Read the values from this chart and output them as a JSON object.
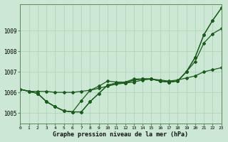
{
  "background_color": "#cce8d4",
  "grid_color": "#aad0b8",
  "line_color": "#1a5c1a",
  "xlabel": "Graphe pression niveau de la mer (hPa)",
  "xlim": [
    0,
    23
  ],
  "ylim": [
    1004.5,
    1010.3
  ],
  "yticks": [
    1005,
    1006,
    1007,
    1008,
    1009
  ],
  "xticks": [
    0,
    1,
    2,
    3,
    4,
    5,
    6,
    7,
    8,
    9,
    10,
    11,
    12,
    13,
    14,
    15,
    16,
    17,
    18,
    19,
    20,
    21,
    22,
    23
  ],
  "series": [
    [
      1006.15,
      1006.05,
      1006.05,
      1006.05,
      1006.0,
      1006.0,
      1006.0,
      1006.05,
      1006.1,
      1006.2,
      1006.3,
      1006.4,
      1006.45,
      1006.5,
      1006.6,
      1006.65,
      1006.6,
      1006.55,
      1006.6,
      1006.7,
      1006.8,
      1007.0,
      1007.1,
      1007.2
    ],
    [
      1006.15,
      1006.05,
      1005.95,
      1005.55,
      1005.3,
      1005.1,
      1005.05,
      1005.05,
      1005.55,
      1005.95,
      1006.35,
      1006.45,
      1006.45,
      1006.6,
      1006.65,
      1006.65,
      1006.55,
      1006.5,
      1006.55,
      1007.0,
      1007.5,
      1008.4,
      1008.85,
      1009.1
    ],
    [
      1006.15,
      1006.05,
      1005.95,
      1005.55,
      1005.3,
      1005.1,
      1005.05,
      1005.05,
      1005.55,
      1005.95,
      1006.35,
      1006.45,
      1006.45,
      1006.6,
      1006.65,
      1006.65,
      1006.55,
      1006.5,
      1006.55,
      1007.0,
      1007.7,
      1008.8,
      1009.5,
      1010.1
    ],
    [
      1006.15,
      1006.05,
      1005.95,
      1005.55,
      1005.3,
      1005.1,
      1005.05,
      1005.6,
      1006.1,
      1006.3,
      1006.55,
      1006.5,
      1006.5,
      1006.65,
      1006.65,
      1006.65,
      1006.55,
      1006.5,
      1006.55,
      1007.0,
      1007.7,
      1008.8,
      1009.5,
      1010.1
    ]
  ]
}
